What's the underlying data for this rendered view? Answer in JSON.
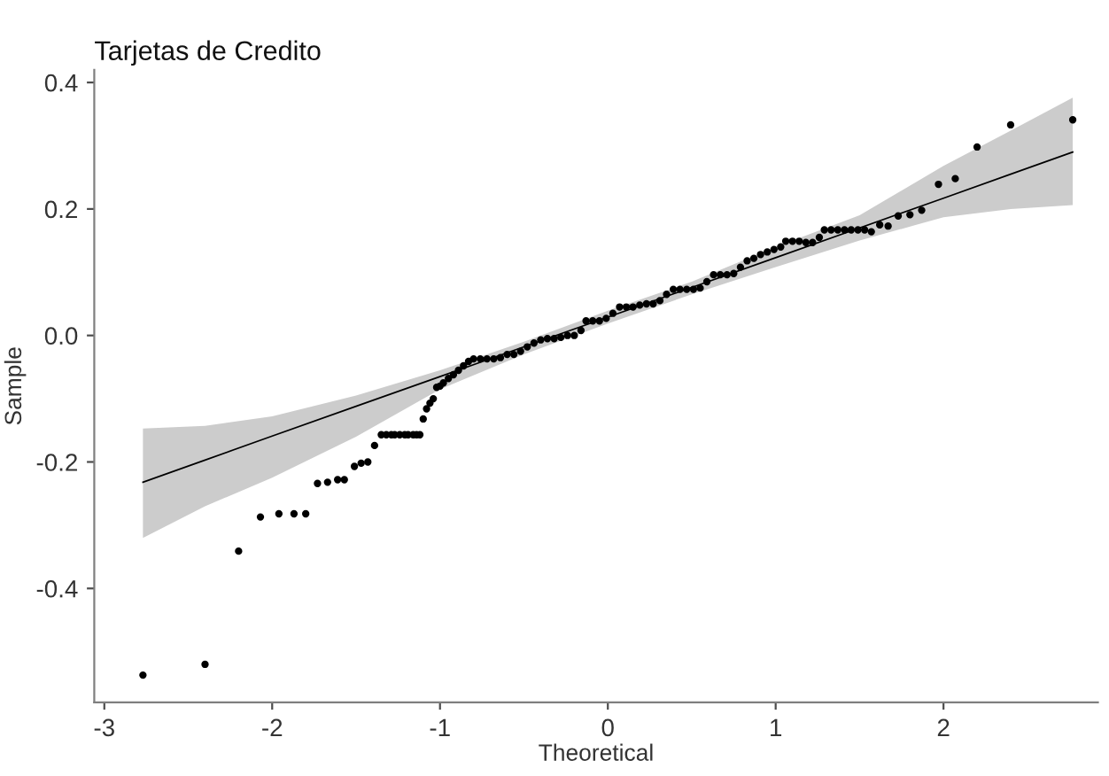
{
  "chart_data": {
    "type": "scatter",
    "title": "Tarjetas de Credito",
    "xlabel": "Theoretical",
    "ylabel": "Sample",
    "xlim": [
      -3.06,
      2.92
    ],
    "ylim": [
      -0.58,
      0.42
    ],
    "xticks": [
      -3,
      -2,
      -1,
      0,
      1,
      2
    ],
    "yticks": [
      -0.4,
      -0.2,
      {
        "value": 0.0,
        "label": "0.0"
      },
      0.2,
      0.4
    ],
    "grid": false,
    "legend": false,
    "series": [
      {
        "type": "line",
        "color": "#000000",
        "line_style": "solid",
        "marker": "none",
        "x": [
          -2.77,
          -2.4,
          -2.0,
          -1.5,
          -1.0,
          -0.5,
          0.0,
          0.5,
          1.0,
          1.5,
          2.0,
          2.4,
          2.77
        ],
        "values": [
          -0.232,
          -0.197,
          -0.159,
          -0.112,
          -0.065,
          -0.018,
          0.029,
          0.076,
          0.123,
          0.17,
          0.217,
          0.255,
          0.29
        ],
        "lower": [
          -0.32,
          -0.27,
          -0.225,
          -0.16,
          -0.085,
          -0.03,
          0.019,
          0.065,
          0.108,
          0.15,
          0.187,
          0.2,
          0.206
        ],
        "upper": [
          -0.147,
          -0.143,
          -0.128,
          -0.095,
          -0.055,
          -0.01,
          0.039,
          0.085,
          0.14,
          0.19,
          0.268,
          0.324,
          0.376
        ]
      },
      {
        "color": "#000000",
        "marker": "circle",
        "x": [
          -2.77,
          -2.4,
          -2.2,
          -2.07,
          -1.96,
          -1.87,
          -1.8,
          -1.73,
          -1.67,
          -1.61,
          -1.57,
          -1.51,
          -1.47,
          -1.43,
          -1.39,
          -1.35,
          -1.32,
          -1.29,
          -1.27,
          -1.24,
          -1.21,
          -1.19,
          -1.16,
          -1.14,
          -1.12,
          -1.1,
          -1.08,
          -1.06,
          -1.04,
          -1.02,
          -1.0,
          -0.98,
          -0.95,
          -0.92,
          -0.89,
          -0.86,
          -0.83,
          -0.8,
          -0.76,
          -0.72,
          -0.68,
          -0.64,
          -0.6,
          -0.56,
          -0.52,
          -0.48,
          -0.44,
          -0.4,
          -0.36,
          -0.32,
          -0.28,
          -0.24,
          -0.2,
          -0.16,
          -0.13,
          -0.09,
          -0.05,
          -0.01,
          0.03,
          0.07,
          0.11,
          0.15,
          0.19,
          0.23,
          0.27,
          0.31,
          0.35,
          0.39,
          0.43,
          0.47,
          0.51,
          0.55,
          0.59,
          0.63,
          0.67,
          0.71,
          0.75,
          0.79,
          0.83,
          0.87,
          0.91,
          0.95,
          0.99,
          1.03,
          1.06,
          1.1,
          1.14,
          1.18,
          1.22,
          1.26,
          1.29,
          1.33,
          1.37,
          1.41,
          1.45,
          1.49,
          1.53,
          1.57,
          1.62,
          1.67,
          1.73,
          1.8,
          1.87,
          1.97,
          2.07,
          2.2,
          2.4,
          2.77
        ],
        "values": [
          -0.537,
          -0.52,
          -0.341,
          -0.287,
          -0.282,
          -0.282,
          -0.282,
          -0.234,
          -0.232,
          -0.228,
          -0.228,
          -0.207,
          -0.202,
          -0.2,
          -0.174,
          -0.157,
          -0.157,
          -0.157,
          -0.157,
          -0.157,
          -0.157,
          -0.157,
          -0.157,
          -0.157,
          -0.157,
          -0.132,
          -0.116,
          -0.107,
          -0.1,
          -0.082,
          -0.08,
          -0.075,
          -0.068,
          -0.062,
          -0.055,
          -0.048,
          -0.041,
          -0.037,
          -0.037,
          -0.037,
          -0.037,
          -0.035,
          -0.03,
          -0.03,
          -0.025,
          -0.018,
          -0.012,
          -0.007,
          -0.005,
          -0.005,
          -0.003,
          0.0,
          0.0,
          0.008,
          0.023,
          0.023,
          0.023,
          0.027,
          0.035,
          0.045,
          0.045,
          0.045,
          0.048,
          0.05,
          0.05,
          0.055,
          0.065,
          0.073,
          0.073,
          0.073,
          0.073,
          0.075,
          0.085,
          0.096,
          0.096,
          0.096,
          0.098,
          0.108,
          0.118,
          0.122,
          0.128,
          0.132,
          0.136,
          0.14,
          0.149,
          0.149,
          0.149,
          0.147,
          0.147,
          0.155,
          0.167,
          0.167,
          0.167,
          0.167,
          0.167,
          0.167,
          0.167,
          0.164,
          0.175,
          0.173,
          0.189,
          0.191,
          0.198,
          0.239,
          0.248,
          0.298,
          0.333,
          0.341
        ]
      }
    ]
  }
}
